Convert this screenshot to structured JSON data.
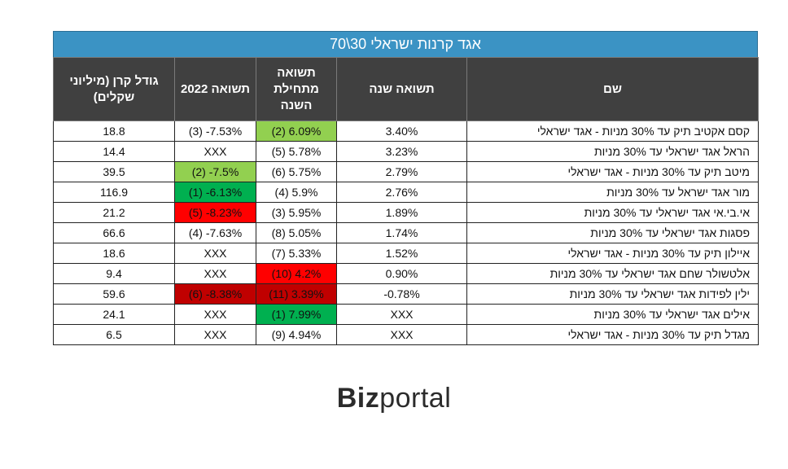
{
  "title": "אגד קרנות ישראלי 30\\70",
  "columns": [
    {
      "key": "name",
      "label": "שם"
    },
    {
      "key": "ytd_year",
      "label": "תשואה שנה"
    },
    {
      "key": "ytd_start",
      "label": "תשואה מתחילת השנה"
    },
    {
      "key": "ret_2022",
      "label": "תשואה 2022"
    },
    {
      "key": "size",
      "label": "גודל קרן (מיליוני שקלים)"
    }
  ],
  "rows": [
    {
      "name": "קסם אקטיב תיק עד 30% מניות - אגד ישראלי",
      "year": "3.40%",
      "ytd": "(2) 6.09%",
      "ytd_hl": "lightgreen",
      "r2022": "(3) -7.53%",
      "r2022_hl": "",
      "size": "18.8"
    },
    {
      "name": "הראל אגד ישראלי עד 30% מניות",
      "year": "3.23%",
      "ytd": "(5) 5.78%",
      "ytd_hl": "",
      "r2022": "XXX",
      "r2022_hl": "",
      "size": "14.4"
    },
    {
      "name": "מיטב תיק עד 30% מניות - אגד ישראלי",
      "year": "2.79%",
      "ytd": "(6) 5.75%",
      "ytd_hl": "",
      "r2022": "(2) -7.5%",
      "r2022_hl": "lightgreen",
      "size": "39.5"
    },
    {
      "name": "מור אגד ישראל עד 30% מניות",
      "year": "2.76%",
      "ytd": "(4) 5.9%",
      "ytd_hl": "",
      "r2022": "(1) -6.13%",
      "r2022_hl": "green",
      "size": "116.9"
    },
    {
      "name": "אי.בי.אי אגד ישראלי עד 30% מניות",
      "year": "1.89%",
      "ytd": "(3) 5.95%",
      "ytd_hl": "",
      "r2022": "(5) -8.23%",
      "r2022_hl": "red",
      "size": "21.2"
    },
    {
      "name": "פסגות אגד ישראלי עד 30% מניות",
      "year": "1.74%",
      "ytd": "(8) 5.05%",
      "ytd_hl": "",
      "r2022": "(4) -7.63%",
      "r2022_hl": "",
      "size": "66.6"
    },
    {
      "name": "איילון תיק עד 30% מניות - אגד ישראלי",
      "year": "1.52%",
      "ytd": "(7) 5.33%",
      "ytd_hl": "",
      "r2022": "XXX",
      "r2022_hl": "",
      "size": "18.6"
    },
    {
      "name": "אלטשולר שחם אגד ישראלי עד 30% מניות",
      "year": "0.90%",
      "ytd": "(10) 4.2%",
      "ytd_hl": "red",
      "r2022": "XXX",
      "r2022_hl": "",
      "size": "9.4"
    },
    {
      "name": "ילין לפידות אגד ישראלי עד 30% מניות",
      "year": "-0.78%",
      "ytd": "(11) 3.39%",
      "ytd_hl": "darkred",
      "r2022": "(6) -8.38%",
      "r2022_hl": "darkred",
      "size": "59.6"
    },
    {
      "name": "אילים אגד ישראלי עד 30% מניות",
      "year": "XXX",
      "ytd": "(1) 7.99%",
      "ytd_hl": "green",
      "r2022": "XXX",
      "r2022_hl": "",
      "size": "24.1"
    },
    {
      "name": "מגדל תיק עד 30% מניות - אגד ישראלי",
      "year": "XXX",
      "ytd": "(9) 4.94%",
      "ytd_hl": "",
      "r2022": "XXX",
      "r2022_hl": "",
      "size": "6.5"
    }
  ],
  "logo": {
    "biz": "Biz",
    "portal": "portal"
  }
}
